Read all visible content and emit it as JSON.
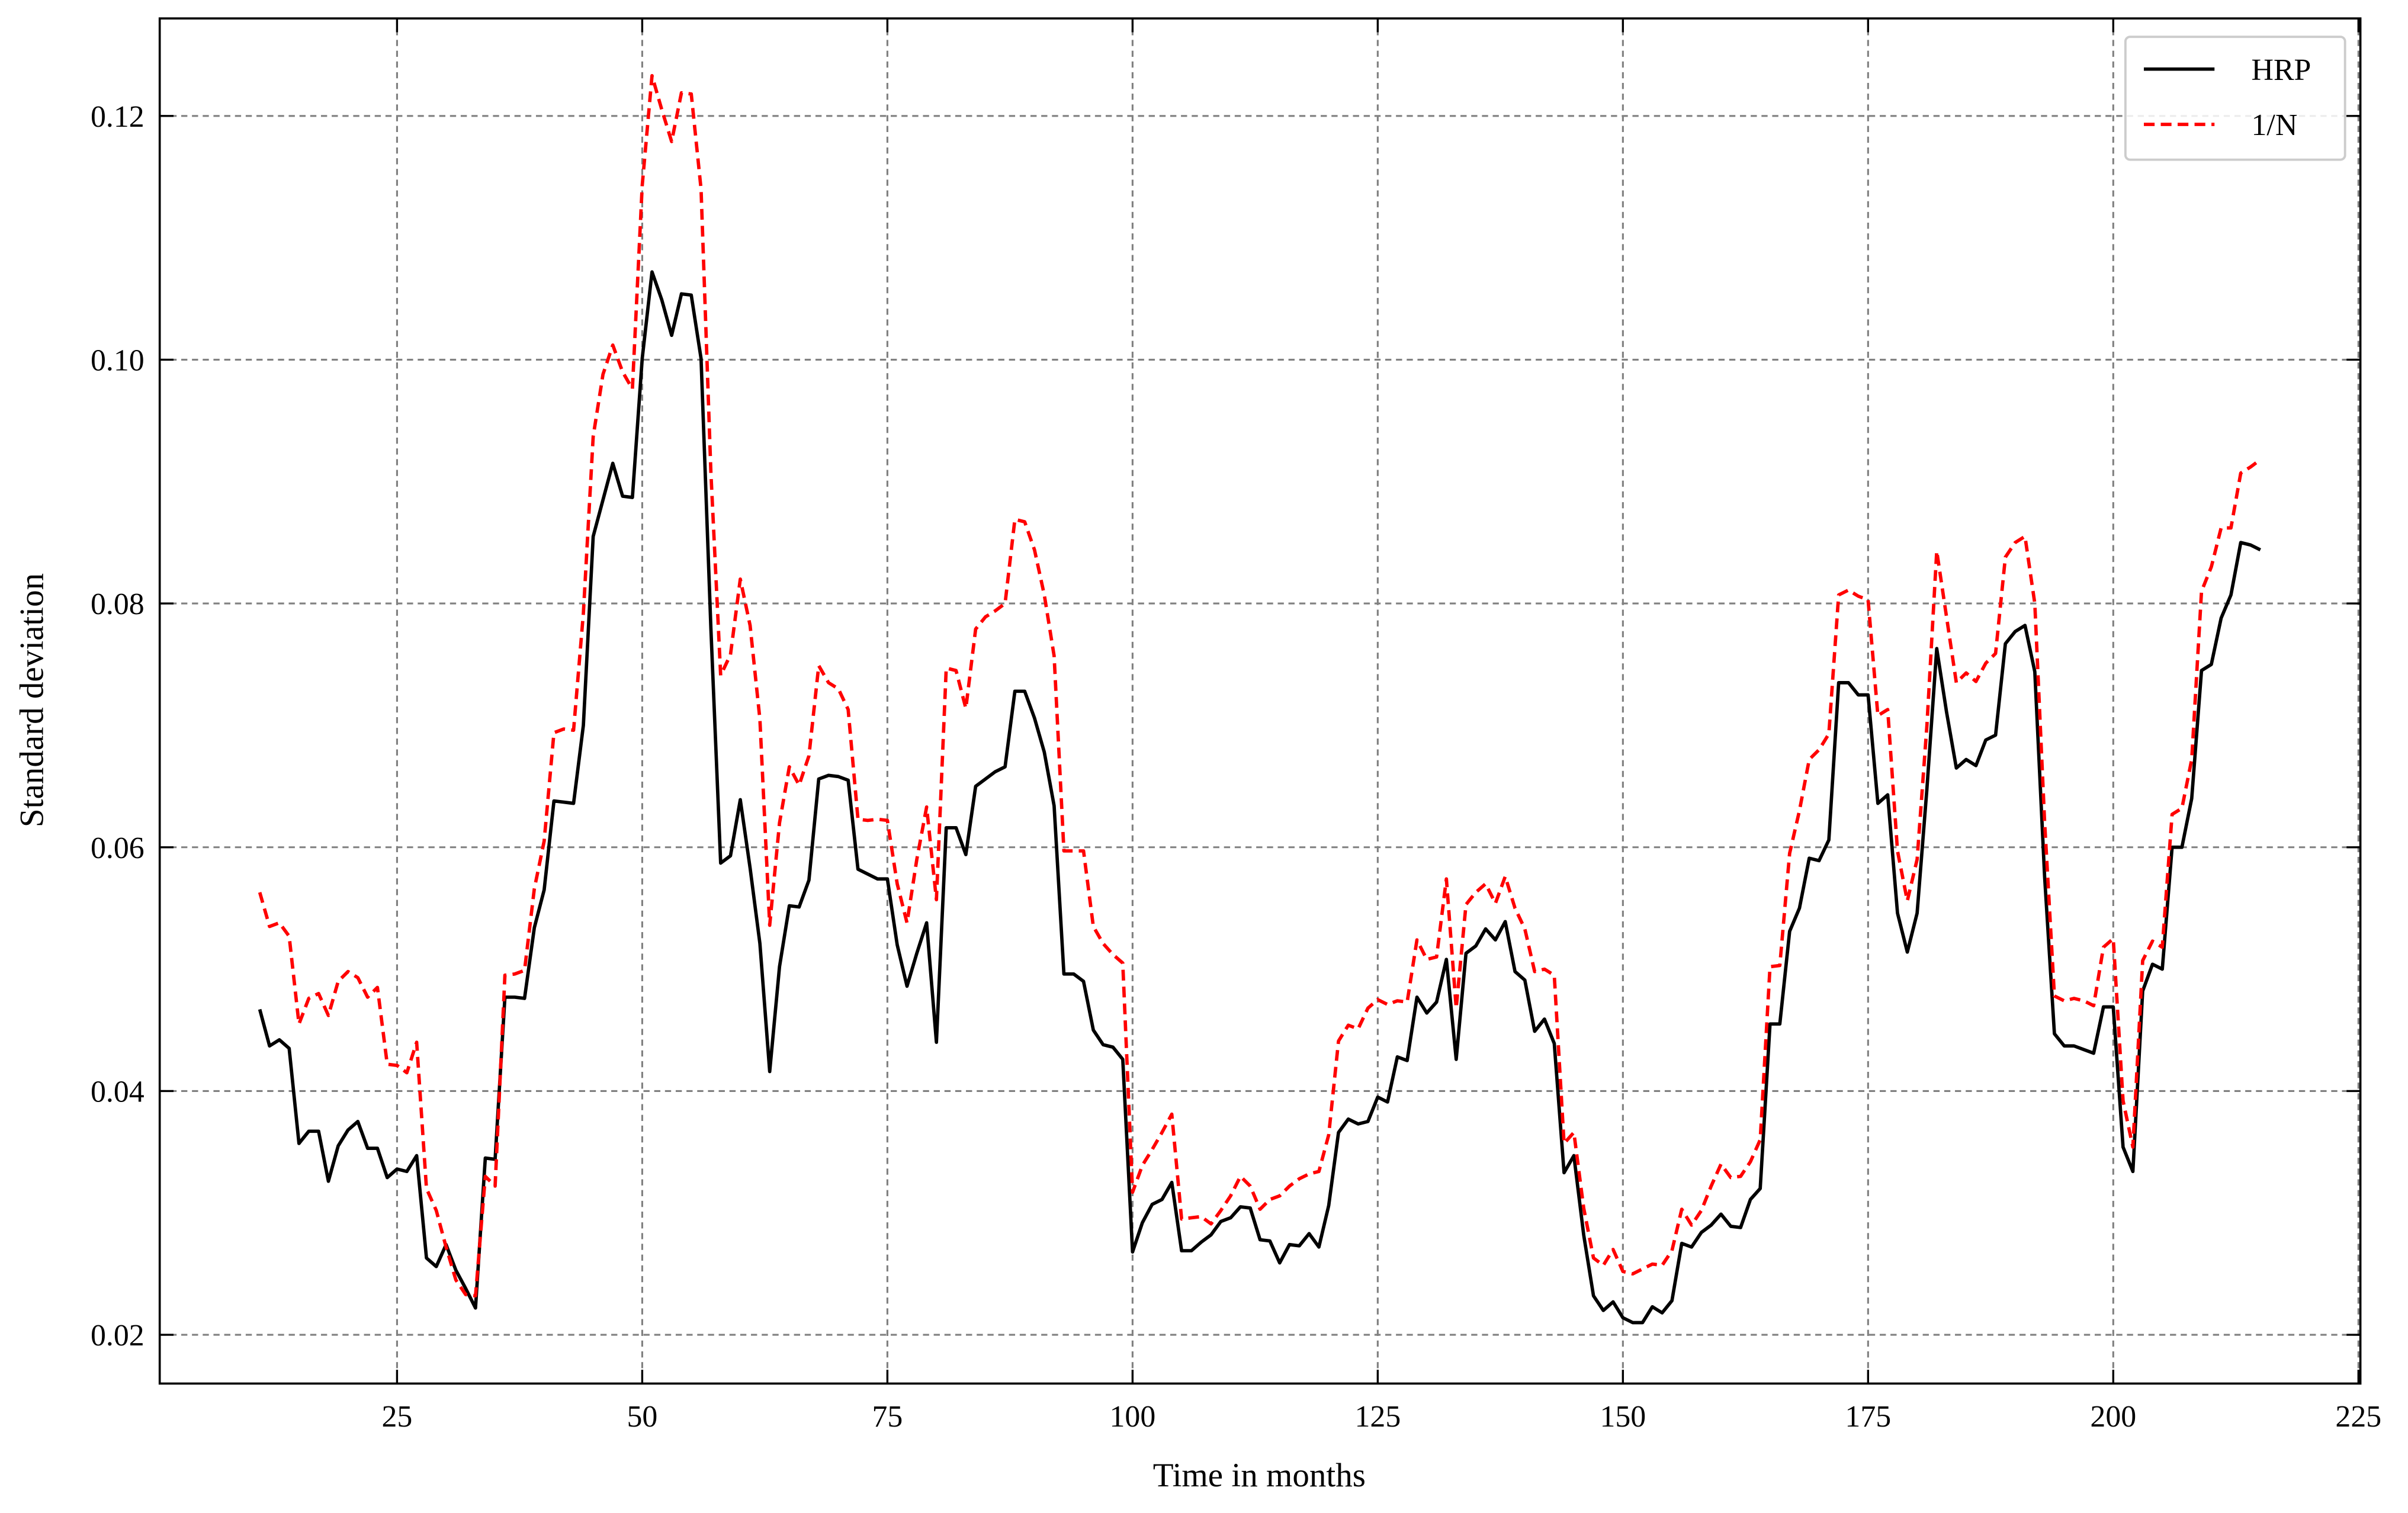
{
  "chart_data": {
    "type": "line",
    "xlabel": "Time in months",
    "ylabel": "Standard deviation",
    "xlim": [
      0.8,
      225.2
    ],
    "ylim": [
      0.016,
      0.128
    ],
    "xticks": [
      25,
      50,
      75,
      100,
      125,
      150,
      175,
      200,
      225
    ],
    "yticks": [
      {
        "value": 0.02,
        "label": "0.02"
      },
      {
        "value": 0.04,
        "label": "0.04"
      },
      {
        "value": 0.06,
        "label": "0.06"
      },
      {
        "value": 0.08,
        "label": "0.08"
      },
      {
        "value": 0.1,
        "label": "0.10"
      },
      {
        "value": 0.12,
        "label": "0.12"
      }
    ],
    "grid": true,
    "legend": "upper right",
    "x": [
      11,
      12,
      13,
      14,
      15,
      16,
      17,
      18,
      19,
      20,
      21,
      22,
      23,
      24,
      25,
      26,
      27,
      28,
      29,
      30,
      31,
      32,
      33,
      34,
      35,
      36,
      37,
      38,
      39,
      40,
      41,
      42,
      43,
      44,
      45,
      46,
      47,
      48,
      49,
      50,
      51,
      52,
      53,
      54,
      55,
      56,
      57,
      58,
      59,
      60,
      61,
      62,
      63,
      64,
      65,
      66,
      67,
      68,
      69,
      70,
      71,
      72,
      73,
      74,
      75,
      76,
      77,
      78,
      79,
      80,
      81,
      82,
      83,
      84,
      85,
      86,
      87,
      88,
      89,
      90,
      91,
      92,
      93,
      94,
      95,
      96,
      97,
      98,
      99,
      100,
      101,
      102,
      103,
      104,
      105,
      106,
      107,
      108,
      109,
      110,
      111,
      112,
      113,
      114,
      115,
      116,
      117,
      118,
      119,
      120,
      121,
      122,
      123,
      124,
      125,
      126,
      127,
      128,
      129,
      130,
      131,
      132,
      133,
      134,
      135,
      136,
      137,
      138,
      139,
      140,
      141,
      142,
      143,
      144,
      145,
      146,
      147,
      148,
      149,
      150,
      151,
      152,
      153,
      154,
      155,
      156,
      157,
      158,
      159,
      160,
      161,
      162,
      163,
      164,
      165,
      166,
      167,
      168,
      169,
      170,
      171,
      172,
      173,
      174,
      175,
      176,
      177,
      178,
      179,
      180,
      181,
      182,
      183,
      184,
      185,
      186,
      187,
      188,
      189,
      190,
      191,
      192,
      193,
      194,
      195,
      196,
      197,
      198,
      199,
      200,
      201,
      202,
      203,
      204,
      205,
      206,
      207,
      208,
      209,
      210,
      211,
      212,
      213,
      214,
      215
    ],
    "series": [
      {
        "name": "HRP",
        "color": "#000000",
        "dash": "solid",
        "values": [
          0.0467,
          0.0437,
          0.0442,
          0.0435,
          0.0357,
          0.0367,
          0.0367,
          0.0326,
          0.0355,
          0.0368,
          0.0375,
          0.0353,
          0.0353,
          0.0329,
          0.0336,
          0.0334,
          0.0347,
          0.0263,
          0.0256,
          0.0274,
          0.0253,
          0.0238,
          0.0222,
          0.0345,
          0.0344,
          0.0477,
          0.0477,
          0.0476,
          0.0534,
          0.0565,
          0.0638,
          0.0637,
          0.0636,
          0.07,
          0.0855,
          0.0885,
          0.0915,
          0.0888,
          0.0887,
          0.1001,
          0.1072,
          0.1049,
          0.102,
          0.1054,
          0.1053,
          0.1001,
          0.078,
          0.0587,
          0.0593,
          0.0639,
          0.0583,
          0.0521,
          0.0416,
          0.0502,
          0.0552,
          0.0551,
          0.0573,
          0.0656,
          0.0659,
          0.0658,
          0.0655,
          0.0582,
          0.0578,
          0.0574,
          0.0574,
          0.052,
          0.0486,
          0.0513,
          0.0538,
          0.044,
          0.0616,
          0.0616,
          0.0594,
          0.065,
          0.0656,
          0.0662,
          0.0666,
          0.0728,
          0.0728,
          0.0706,
          0.0678,
          0.0634,
          0.0496,
          0.0496,
          0.049,
          0.045,
          0.0438,
          0.0436,
          0.0426,
          0.0268,
          0.0292,
          0.0307,
          0.0311,
          0.0325,
          0.0269,
          0.0269,
          0.0276,
          0.0282,
          0.0293,
          0.0296,
          0.0305,
          0.0304,
          0.0278,
          0.0277,
          0.0259,
          0.0274,
          0.0273,
          0.0283,
          0.0272,
          0.0306,
          0.0366,
          0.0377,
          0.0373,
          0.0375,
          0.0395,
          0.0391,
          0.0428,
          0.0425,
          0.0477,
          0.0464,
          0.0473,
          0.0508,
          0.0426,
          0.0513,
          0.0519,
          0.0533,
          0.0524,
          0.0539,
          0.0498,
          0.0491,
          0.0449,
          0.0459,
          0.0439,
          0.0333,
          0.0347,
          0.0282,
          0.0232,
          0.022,
          0.0227,
          0.0214,
          0.021,
          0.021,
          0.0223,
          0.0218,
          0.0228,
          0.0275,
          0.0272,
          0.0284,
          0.029,
          0.0299,
          0.0289,
          0.0288,
          0.0311,
          0.032,
          0.0455,
          0.0455,
          0.0531,
          0.055,
          0.0591,
          0.0589,
          0.0606,
          0.0735,
          0.0735,
          0.0725,
          0.0725,
          0.0636,
          0.0643,
          0.0546,
          0.0514,
          0.0546,
          0.0648,
          0.0763,
          0.0711,
          0.0665,
          0.0672,
          0.0667,
          0.0688,
          0.0692,
          0.0767,
          0.0777,
          0.0782,
          0.0744,
          0.0576,
          0.0447,
          0.0437,
          0.0437,
          0.0434,
          0.0431,
          0.0469,
          0.0469,
          0.0354,
          0.0334,
          0.0482,
          0.0504,
          0.05,
          0.06,
          0.06,
          0.064,
          0.0745,
          0.075,
          0.0788,
          0.0807,
          0.085,
          0.0848,
          0.0844
        ]
      },
      {
        "name": "1/N",
        "color": "#ff0000",
        "dash": "dashed",
        "values": [
          0.0563,
          0.0535,
          0.0538,
          0.0527,
          0.0455,
          0.0476,
          0.048,
          0.0462,
          0.049,
          0.0498,
          0.0493,
          0.0477,
          0.0485,
          0.0422,
          0.0421,
          0.0415,
          0.044,
          0.032,
          0.0302,
          0.0272,
          0.0245,
          0.0233,
          0.0232,
          0.033,
          0.0322,
          0.0495,
          0.0496,
          0.0499,
          0.0566,
          0.0605,
          0.0694,
          0.0697,
          0.0696,
          0.0792,
          0.0937,
          0.0988,
          0.1012,
          0.099,
          0.0976,
          0.1143,
          0.1233,
          0.1205,
          0.1179,
          0.1219,
          0.1218,
          0.114,
          0.0908,
          0.0741,
          0.0758,
          0.082,
          0.0782,
          0.0705,
          0.0536,
          0.062,
          0.0666,
          0.0651,
          0.0675,
          0.0749,
          0.0735,
          0.073,
          0.0713,
          0.0623,
          0.0622,
          0.0623,
          0.0622,
          0.057,
          0.0538,
          0.059,
          0.0633,
          0.0557,
          0.0747,
          0.0745,
          0.0714,
          0.0779,
          0.0789,
          0.0794,
          0.08,
          0.0869,
          0.0867,
          0.0844,
          0.0807,
          0.0757,
          0.0597,
          0.0597,
          0.0597,
          0.0535,
          0.0521,
          0.0512,
          0.0505,
          0.0317,
          0.0339,
          0.0352,
          0.0366,
          0.0381,
          0.0295,
          0.0296,
          0.0297,
          0.0291,
          0.0302,
          0.0314,
          0.033,
          0.0322,
          0.0303,
          0.0311,
          0.0314,
          0.0322,
          0.0328,
          0.0332,
          0.0334,
          0.0364,
          0.0441,
          0.0454,
          0.0451,
          0.0468,
          0.0475,
          0.0471,
          0.0474,
          0.0473,
          0.0524,
          0.0508,
          0.051,
          0.0574,
          0.0468,
          0.0553,
          0.0563,
          0.057,
          0.0554,
          0.0576,
          0.055,
          0.0533,
          0.0498,
          0.05,
          0.0495,
          0.0357,
          0.0366,
          0.0304,
          0.0263,
          0.0257,
          0.027,
          0.0252,
          0.025,
          0.0254,
          0.0258,
          0.0257,
          0.0269,
          0.0303,
          0.029,
          0.0302,
          0.0322,
          0.034,
          0.0329,
          0.033,
          0.0342,
          0.036,
          0.0502,
          0.0503,
          0.0595,
          0.063,
          0.0672,
          0.068,
          0.0693,
          0.0807,
          0.0811,
          0.0806,
          0.0803,
          0.0708,
          0.0713,
          0.0597,
          0.0556,
          0.059,
          0.07,
          0.0843,
          0.0789,
          0.0735,
          0.0743,
          0.0736,
          0.0751,
          0.0759,
          0.0838,
          0.085,
          0.0855,
          0.08,
          0.0621,
          0.0478,
          0.0474,
          0.0476,
          0.0474,
          0.047,
          0.0518,
          0.0525,
          0.0392,
          0.0354,
          0.0507,
          0.0523,
          0.0518,
          0.0627,
          0.0632,
          0.0672,
          0.081,
          0.083,
          0.0862,
          0.0862,
          0.0907,
          0.0912,
          0.0918
        ]
      }
    ]
  }
}
